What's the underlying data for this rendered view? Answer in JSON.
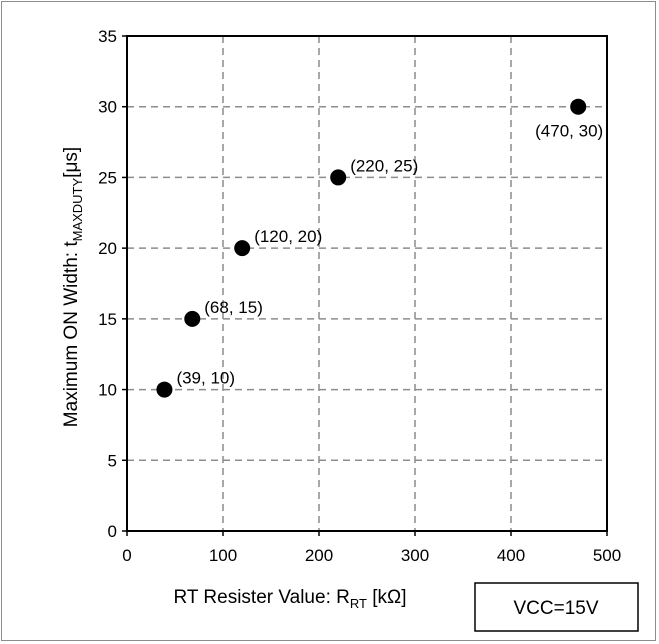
{
  "chart_data": {
    "type": "scatter",
    "title": "",
    "xlabel": {
      "prefix": "RT Resister Value: R",
      "subscript": "RT",
      "suffix": " [kΩ]"
    },
    "ylabel": {
      "prefix": "Maximum ON Width: t",
      "subscript": "MAXDUTY",
      "suffix": "[μs]"
    },
    "xlim": [
      0,
      500
    ],
    "ylim": [
      0,
      35
    ],
    "xticks": [
      "0",
      "100",
      "200",
      "300",
      "400",
      "500"
    ],
    "yticks": [
      "0",
      "5",
      "10",
      "15",
      "20",
      "25",
      "30",
      "35"
    ],
    "grid": true,
    "points": [
      {
        "x": 39,
        "y": 10,
        "label": "(39, 10)"
      },
      {
        "x": 68,
        "y": 15,
        "label": "(68, 15)"
      },
      {
        "x": 120,
        "y": 20,
        "label": "(120, 20)"
      },
      {
        "x": 220,
        "y": 25,
        "label": "(220, 25)"
      },
      {
        "x": 470,
        "y": 30,
        "label": "(470, 30)"
      }
    ],
    "marker_color": "#000000",
    "grid_color": "#8c8c8c",
    "annotation": "VCC=15V"
  }
}
